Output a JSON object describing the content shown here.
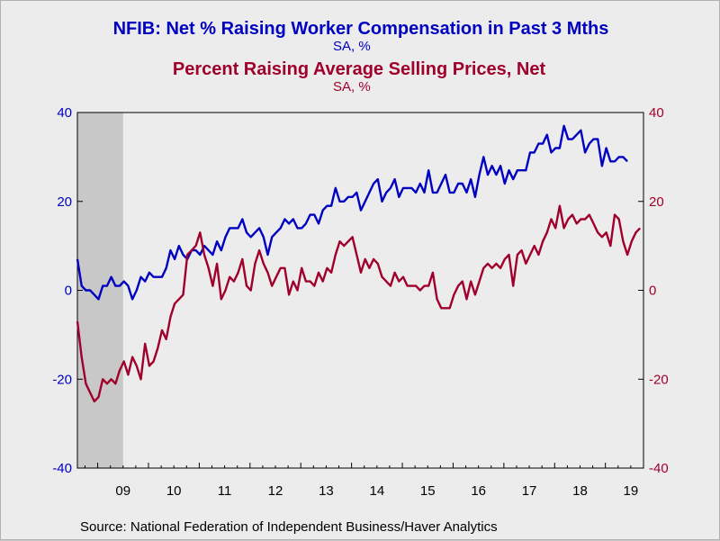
{
  "header": {
    "title1": "NFIB: Net % Raising Worker Compensation in Past 3 Mths",
    "sub1": "SA, %",
    "title2": "Percent Raising Average Selling Prices, Net",
    "sub2": "SA, %",
    "source": "Source:  National Federation of Independent Business/Haver Analytics"
  },
  "colors": {
    "series1": "#0000c0",
    "series2": "#a0002c",
    "recession": "#c8c8c8",
    "background": "#ececec"
  },
  "chart_data": {
    "type": "line",
    "x_tick_labels": [
      "09",
      "10",
      "11",
      "12",
      "13",
      "14",
      "15",
      "16",
      "17",
      "18",
      "19"
    ],
    "x_range_years": [
      2008.6,
      2019.75
    ],
    "recession_shade_years": [
      2008.6,
      2009.5
    ],
    "ylim_left": [
      -40,
      40
    ],
    "ylim_right": [
      -40,
      40
    ],
    "yticks_left": [
      -40,
      -20,
      0,
      20,
      40
    ],
    "yticks_right": [
      -40,
      -20,
      0,
      20,
      40
    ],
    "grid": false,
    "series": [
      {
        "name": "NFIB: Net % Raising Worker Compensation in Past 3 Mths",
        "axis": "left",
        "start_year": 2008.6,
        "step_months": 1,
        "values": [
          7,
          1,
          0,
          0,
          -1,
          -2,
          1,
          1,
          3,
          1,
          1,
          2,
          1,
          -2,
          0,
          3,
          2,
          4,
          3,
          3,
          3,
          5,
          9,
          7,
          10,
          8,
          7,
          9,
          9,
          8,
          10,
          9,
          8,
          11,
          9,
          12,
          14,
          14,
          14,
          16,
          13,
          12,
          13,
          14,
          12,
          8,
          12,
          13,
          14,
          16,
          15,
          16,
          14,
          14,
          15,
          17,
          17,
          15,
          18,
          19,
          19,
          23,
          20,
          20,
          21,
          21,
          22,
          18,
          20,
          22,
          24,
          25,
          20,
          22,
          23,
          25,
          21,
          23,
          23,
          23,
          22,
          24,
          22,
          27,
          22,
          22,
          24,
          26,
          22,
          22,
          24,
          24,
          22,
          25,
          21,
          26,
          30,
          26,
          28,
          26,
          28,
          24,
          27,
          25,
          27,
          27,
          27,
          31,
          31,
          33,
          33,
          35,
          31,
          32,
          32,
          37,
          34,
          34,
          35,
          36,
          31,
          33,
          34,
          34,
          28,
          32,
          29,
          29,
          30,
          30,
          29
        ]
      },
      {
        "name": "Percent Raising Average Selling Prices, Net",
        "axis": "right",
        "start_year": 2008.6,
        "step_months": 1,
        "values": [
          -7,
          -15,
          -21,
          -23,
          -25,
          -24,
          -20,
          -21,
          -20,
          -21,
          -18,
          -16,
          -19,
          -15,
          -17,
          -20,
          -12,
          -17,
          -16,
          -13,
          -9,
          -11,
          -6,
          -3,
          -2,
          -1,
          8,
          9,
          10,
          13,
          8,
          5,
          1,
          6,
          -2,
          0,
          3,
          2,
          4,
          7,
          1,
          0,
          6,
          9,
          6,
          4,
          1,
          3,
          5,
          5,
          -1,
          2,
          0,
          5,
          2,
          2,
          1,
          4,
          2,
          5,
          4,
          8,
          11,
          10,
          11,
          12,
          8,
          4,
          7,
          5,
          7,
          6,
          3,
          2,
          1,
          4,
          2,
          3,
          1,
          1,
          1,
          0,
          1,
          1,
          4,
          -2,
          -4,
          -4,
          -4,
          -1,
          1,
          2,
          -2,
          2,
          -1,
          2,
          5,
          6,
          5,
          6,
          5,
          7,
          8,
          1,
          8,
          9,
          6,
          8,
          10,
          8,
          11,
          13,
          16,
          14,
          19,
          14,
          16,
          17,
          15,
          16,
          16,
          17,
          15,
          13,
          12,
          13,
          10,
          17,
          16,
          11,
          8,
          11,
          13,
          14
        ]
      }
    ]
  }
}
